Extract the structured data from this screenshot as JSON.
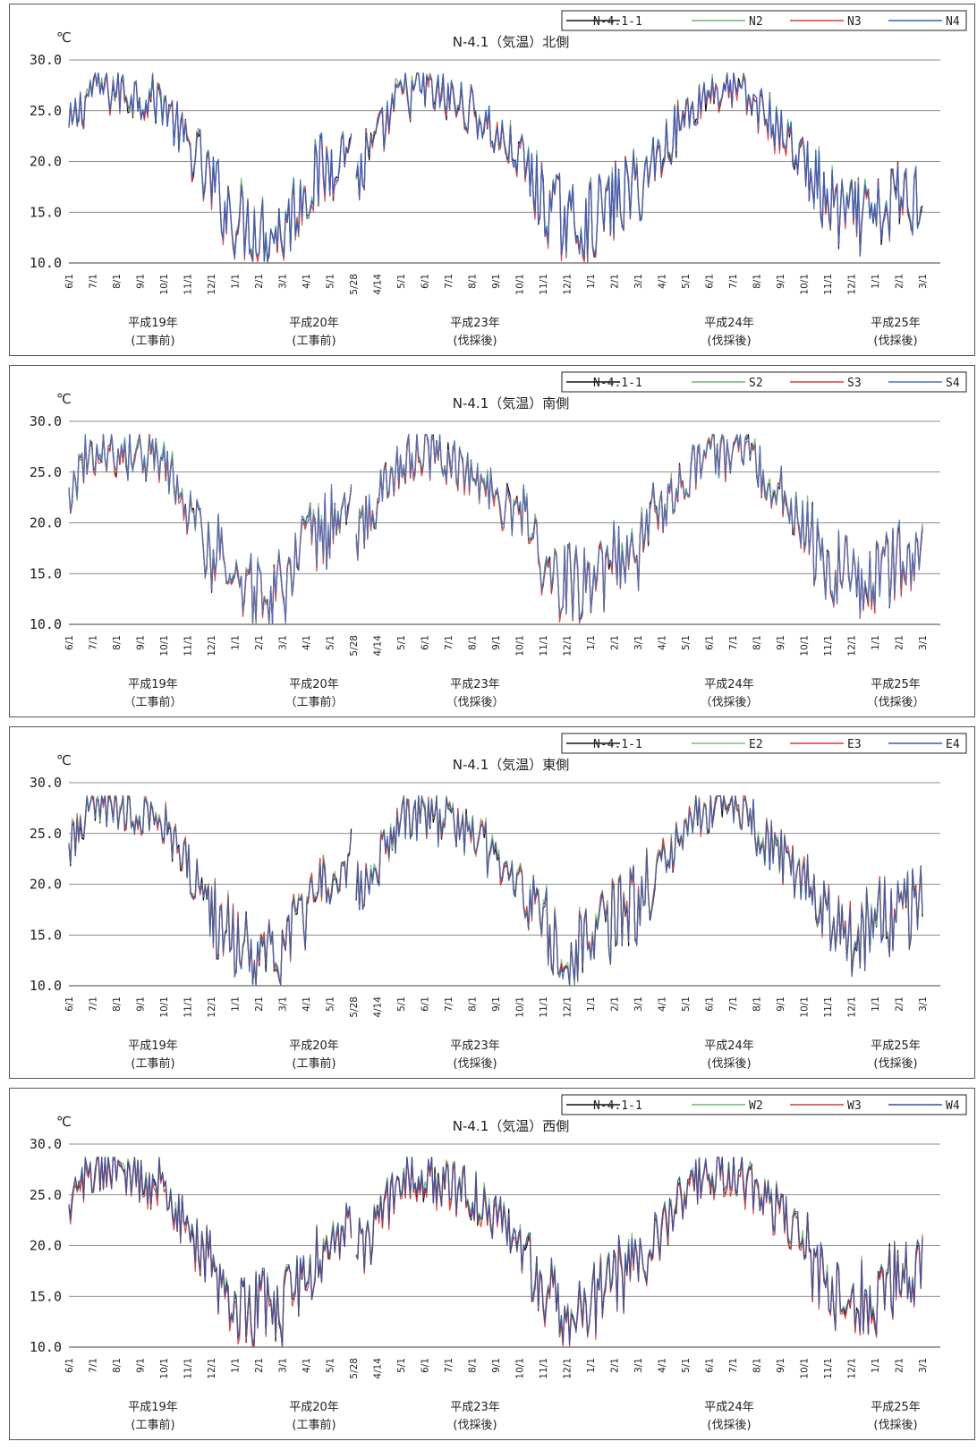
{
  "chart_data": [
    {
      "type": "line",
      "title": "N-4.1（気温）北側",
      "unit": "℃",
      "ylim": [
        10.0,
        30.0
      ],
      "yticks": [
        "10.0",
        "15.0",
        "20.0",
        "25.0",
        "30.0"
      ],
      "x_ticks": [
        "6/1",
        "7/1",
        "8/1",
        "9/1",
        "10/1",
        "11/1",
        "12/1",
        "1/1",
        "2/1",
        "3/1",
        "4/1",
        "5/1",
        "5/28",
        "4/14",
        "5/1",
        "6/1",
        "7/1",
        "8/1",
        "9/1",
        "10/1",
        "11/1",
        "12/1",
        "1/1",
        "2/1",
        "3/1",
        "4/1",
        "5/1",
        "6/1",
        "7/1",
        "8/1",
        "9/1",
        "10/1",
        "11/1",
        "12/1",
        "1/1",
        "2/1",
        "3/1"
      ],
      "periods": [
        {
          "year": "平成19年",
          "phase": "(工事前)"
        },
        {
          "year": "平成20年",
          "phase": "(工事前)"
        },
        {
          "year": "平成23年",
          "phase": "(伐採後)"
        },
        {
          "year": "平成24年",
          "phase": "(伐採後)"
        },
        {
          "year": "平成25年",
          "phase": "(伐採後)"
        }
      ],
      "grid": true,
      "legend_position": "top-right",
      "series": [
        {
          "name": "N-4.1-1",
          "color": "#111111",
          "offset": 0.0,
          "seed": 11
        },
        {
          "name": "N2",
          "color": "#6fb36f",
          "offset": 0.15,
          "seed": 12
        },
        {
          "name": "N3",
          "color": "#d83a3a",
          "offset": -0.1,
          "seed": 13
        },
        {
          "name": "N4",
          "color": "#2f62c7",
          "offset": 0.05,
          "seed": 14
        }
      ],
      "envelope": [
        [
          6,
          23.0
        ],
        [
          7,
          27.5
        ],
        [
          8,
          27.0
        ],
        [
          9,
          26.5
        ],
        [
          10,
          26.0
        ],
        [
          11,
          21.5
        ],
        [
          12,
          17.5
        ],
        [
          13,
          14.5
        ],
        [
          14,
          13.5
        ],
        [
          15,
          13.0
        ],
        [
          16,
          17.5
        ],
        [
          17,
          19.5
        ],
        [
          17.9,
          22.0
        ],
        [
          18.1,
          18.0
        ],
        [
          19,
          22.0
        ],
        [
          20,
          26.5
        ],
        [
          21,
          27.0
        ],
        [
          22,
          26.0
        ],
        [
          23,
          25.0
        ],
        [
          24,
          22.5
        ],
        [
          25,
          20.5
        ],
        [
          26,
          16.0
        ],
        [
          27,
          14.0
        ],
        [
          28,
          14.0
        ],
        [
          29,
          16.0
        ],
        [
          30,
          17.5
        ],
        [
          31,
          21.0
        ],
        [
          32,
          24.5
        ],
        [
          33,
          27.0
        ],
        [
          34,
          27.0
        ],
        [
          35,
          25.5
        ],
        [
          36,
          23.0
        ],
        [
          37,
          20.0
        ],
        [
          38,
          15.5
        ],
        [
          39,
          14.5
        ],
        [
          40,
          14.0
        ],
        [
          41,
          16.5
        ]
      ],
      "gap": [
        17.95,
        18.05
      ]
    },
    {
      "type": "line",
      "title": "N-4.1（気温）南側",
      "unit": "℃",
      "ylim": [
        10.0,
        30.0
      ],
      "yticks": [
        "10.0",
        "15.0",
        "20.0",
        "25.0",
        "30.0"
      ],
      "x_ticks": [
        "6/1",
        "7/1",
        "8/1",
        "9/1",
        "10/1",
        "11/1",
        "12/1",
        "1/1",
        "2/1",
        "3/1",
        "4/1",
        "5/1",
        "5/28",
        "4/14",
        "5/1",
        "6/1",
        "7/1",
        "8/1",
        "9/1",
        "10/1",
        "11/1",
        "12/1",
        "1/1",
        "2/1",
        "3/1",
        "4/1",
        "5/1",
        "6/1",
        "7/1",
        "8/1",
        "9/1",
        "10/1",
        "11/1",
        "12/1",
        "1/1",
        "2/1",
        "3/1"
      ],
      "periods": [
        {
          "year": "平成19年",
          "phase": "（工事前）"
        },
        {
          "year": "平成20年",
          "phase": "（工事前）"
        },
        {
          "year": "平成23年",
          "phase": "（伐採後）"
        },
        {
          "year": "平成24年",
          "phase": "（伐採後）"
        },
        {
          "year": "平成25年",
          "phase": "（伐採後）"
        }
      ],
      "grid": true,
      "legend_position": "top-right",
      "series": [
        {
          "name": "N-4.1-1",
          "color": "#111111",
          "offset": 0.0,
          "seed": 21
        },
        {
          "name": "S2",
          "color": "#6fb36f",
          "offset": 0.1,
          "seed": 22
        },
        {
          "name": "S3",
          "color": "#d83a3a",
          "offset": -0.15,
          "seed": 23
        },
        {
          "name": "S4",
          "color": "#4a72c2",
          "offset": 0.05,
          "seed": 24
        }
      ],
      "envelope": [
        [
          6,
          23.0
        ],
        [
          7,
          27.5
        ],
        [
          8,
          27.0
        ],
        [
          9,
          26.5
        ],
        [
          10,
          26.0
        ],
        [
          11,
          21.5
        ],
        [
          12,
          17.5
        ],
        [
          13,
          14.5
        ],
        [
          14,
          13.5
        ],
        [
          15,
          13.0
        ],
        [
          16,
          17.5
        ],
        [
          17,
          19.5
        ],
        [
          17.9,
          22.0
        ],
        [
          18.1,
          18.0
        ],
        [
          19,
          22.0
        ],
        [
          20,
          26.5
        ],
        [
          21,
          27.0
        ],
        [
          22,
          26.0
        ],
        [
          23,
          25.0
        ],
        [
          24,
          22.5
        ],
        [
          25,
          20.5
        ],
        [
          26,
          16.0
        ],
        [
          27,
          14.0
        ],
        [
          28,
          14.0
        ],
        [
          29,
          16.0
        ],
        [
          30,
          17.5
        ],
        [
          31,
          21.0
        ],
        [
          32,
          24.5
        ],
        [
          33,
          27.0
        ],
        [
          34,
          27.0
        ],
        [
          35,
          25.5
        ],
        [
          36,
          23.0
        ],
        [
          37,
          20.0
        ],
        [
          38,
          15.5
        ],
        [
          39,
          14.5
        ],
        [
          40,
          14.0
        ],
        [
          41,
          16.5
        ]
      ],
      "gap": [
        17.95,
        18.05
      ]
    },
    {
      "type": "line",
      "title": "N-4.1（気温）東側",
      "unit": "℃",
      "ylim": [
        10.0,
        30.0
      ],
      "yticks": [
        "10.0",
        "15.0",
        "20.0",
        "25.0",
        "30.0"
      ],
      "x_ticks": [
        "6/1",
        "7/1",
        "8/1",
        "9/1",
        "10/1",
        "11/1",
        "12/1",
        "1/1",
        "2/1",
        "3/1",
        "4/1",
        "5/1",
        "5/28",
        "4/14",
        "5/1",
        "6/1",
        "7/1",
        "8/1",
        "9/1",
        "10/1",
        "11/1",
        "12/1",
        "1/1",
        "2/1",
        "3/1",
        "4/1",
        "5/1",
        "6/1",
        "7/1",
        "8/1",
        "9/1",
        "10/1",
        "11/1",
        "12/1",
        "1/1",
        "2/1",
        "3/1"
      ],
      "periods": [
        {
          "year": "平成19年",
          "phase": "(工事前)"
        },
        {
          "year": "平成20年",
          "phase": "(工事前)"
        },
        {
          "year": "平成23年",
          "phase": "(伐採後)"
        },
        {
          "year": "平成24年",
          "phase": "(伐採後)"
        },
        {
          "year": "平成25年",
          "phase": "(伐採後)"
        }
      ],
      "grid": true,
      "legend_position": "top-right",
      "series": [
        {
          "name": "N-4.1-1",
          "color": "#111111",
          "offset": 0.0,
          "seed": 31
        },
        {
          "name": "E2",
          "color": "#7fbf7f",
          "offset": 0.2,
          "seed": 32
        },
        {
          "name": "E3",
          "color": "#d83a3a",
          "offset": 0.1,
          "seed": 33
        },
        {
          "name": "E4",
          "color": "#3a5fa8",
          "offset": 0.0,
          "seed": 34
        }
      ],
      "envelope": [
        [
          6,
          23.5
        ],
        [
          7,
          28.0
        ],
        [
          8,
          27.5
        ],
        [
          9,
          26.5
        ],
        [
          10,
          26.0
        ],
        [
          11,
          21.5
        ],
        [
          12,
          17.5
        ],
        [
          13,
          14.5
        ],
        [
          14,
          13.5
        ],
        [
          15,
          13.0
        ],
        [
          16,
          17.5
        ],
        [
          17,
          20.0
        ],
        [
          17.9,
          23.0
        ],
        [
          18.1,
          18.0
        ],
        [
          19,
          22.0
        ],
        [
          20,
          26.5
        ],
        [
          21,
          27.0
        ],
        [
          22,
          26.0
        ],
        [
          23,
          25.0
        ],
        [
          24,
          22.5
        ],
        [
          25,
          20.5
        ],
        [
          26,
          16.0
        ],
        [
          27,
          14.0
        ],
        [
          28,
          14.0
        ],
        [
          29,
          16.5
        ],
        [
          30,
          18.0
        ],
        [
          31,
          21.5
        ],
        [
          32,
          25.0
        ],
        [
          33,
          27.5
        ],
        [
          34,
          27.5
        ],
        [
          35,
          25.5
        ],
        [
          36,
          23.0
        ],
        [
          37,
          20.0
        ],
        [
          38,
          16.0
        ],
        [
          39,
          15.0
        ],
        [
          40,
          16.0
        ],
        [
          41,
          17.5
        ]
      ],
      "gap": [
        17.95,
        18.05
      ]
    },
    {
      "type": "line",
      "title": "N-4.1（気温）西側",
      "unit": "℃",
      "ylim": [
        10.0,
        30.0
      ],
      "yticks": [
        "10.0",
        "15.0",
        "20.0",
        "25.0",
        "30.0"
      ],
      "x_ticks": [
        "6/1",
        "7/1",
        "8/1",
        "9/1",
        "10/1",
        "11/1",
        "12/1",
        "1/1",
        "2/1",
        "3/1",
        "4/1",
        "5/1",
        "5/28",
        "4/14",
        "5/1",
        "6/1",
        "7/1",
        "8/1",
        "9/1",
        "10/1",
        "11/1",
        "12/1",
        "1/1",
        "2/1",
        "3/1",
        "4/1",
        "5/1",
        "6/1",
        "7/1",
        "8/1",
        "9/1",
        "10/1",
        "11/1",
        "12/1",
        "1/1",
        "2/1",
        "3/1"
      ],
      "periods": [
        {
          "year": "平成19年",
          "phase": "(工事前)"
        },
        {
          "year": "平成20年",
          "phase": "(工事前)"
        },
        {
          "year": "平成23年",
          "phase": "(伐採後)"
        },
        {
          "year": "平成24年",
          "phase": "(伐採後)"
        },
        {
          "year": "平成25年",
          "phase": "(伐採後)"
        }
      ],
      "grid": true,
      "legend_position": "top-right",
      "series": [
        {
          "name": "N-4.1-1",
          "color": "#111111",
          "offset": 0.0,
          "seed": 41
        },
        {
          "name": "W2",
          "color": "#6fb36f",
          "offset": 0.2,
          "seed": 42
        },
        {
          "name": "W3",
          "color": "#d83a3a",
          "offset": -0.2,
          "seed": 43
        },
        {
          "name": "W4",
          "color": "#3a4fa0",
          "offset": 0.1,
          "seed": 44
        }
      ],
      "envelope": [
        [
          6,
          23.5
        ],
        [
          7,
          28.0
        ],
        [
          8,
          27.5
        ],
        [
          9,
          26.5
        ],
        [
          10,
          26.0
        ],
        [
          11,
          21.5
        ],
        [
          12,
          17.5
        ],
        [
          13,
          14.5
        ],
        [
          14,
          13.5
        ],
        [
          15,
          13.0
        ],
        [
          16,
          17.5
        ],
        [
          17,
          20.0
        ],
        [
          17.9,
          23.0
        ],
        [
          18.1,
          18.0
        ],
        [
          19,
          22.0
        ],
        [
          20,
          26.5
        ],
        [
          21,
          27.0
        ],
        [
          22,
          26.0
        ],
        [
          23,
          25.0
        ],
        [
          24,
          22.5
        ],
        [
          25,
          20.5
        ],
        [
          26,
          16.0
        ],
        [
          27,
          14.0
        ],
        [
          28,
          14.0
        ],
        [
          29,
          16.5
        ],
        [
          30,
          18.0
        ],
        [
          31,
          21.5
        ],
        [
          32,
          25.0
        ],
        [
          33,
          27.5
        ],
        [
          34,
          27.5
        ],
        [
          35,
          25.5
        ],
        [
          36,
          23.0
        ],
        [
          37,
          20.0
        ],
        [
          38,
          16.0
        ],
        [
          39,
          15.0
        ],
        [
          40,
          15.0
        ],
        [
          41,
          17.0
        ]
      ],
      "gap": [
        17.95,
        18.05
      ]
    }
  ]
}
